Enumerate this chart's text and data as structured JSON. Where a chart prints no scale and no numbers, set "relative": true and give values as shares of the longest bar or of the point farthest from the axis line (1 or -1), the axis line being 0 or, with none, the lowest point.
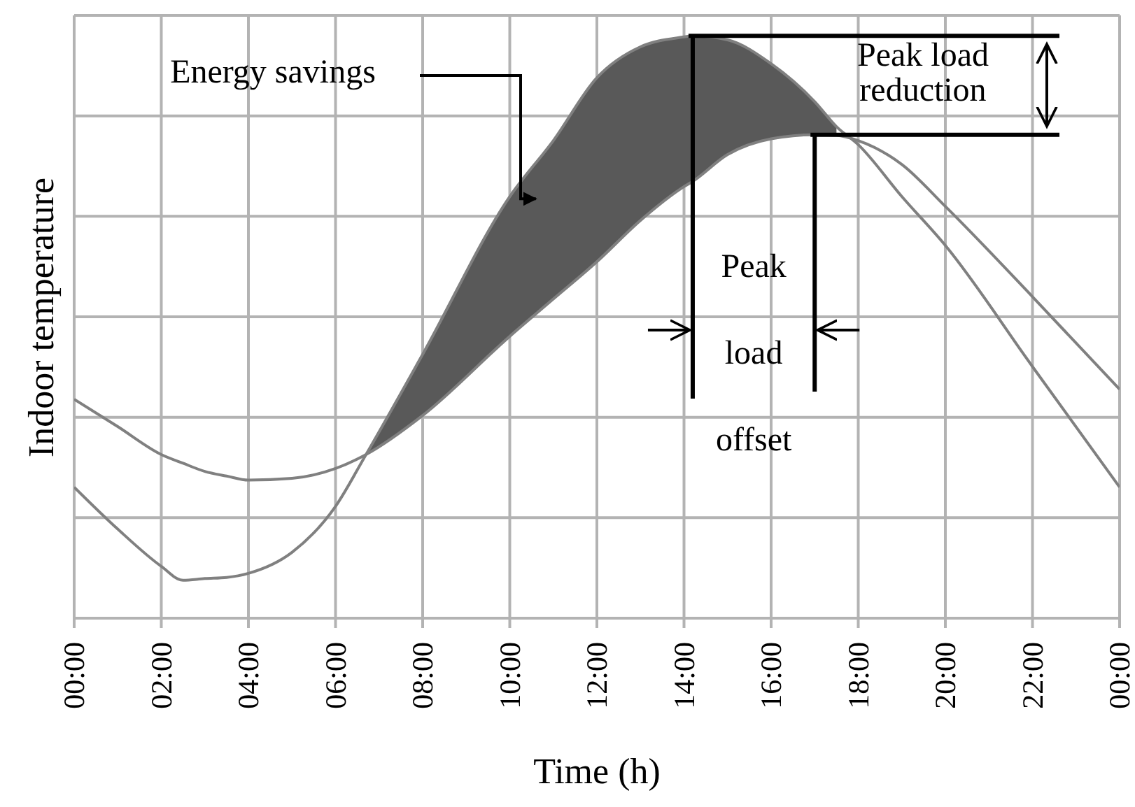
{
  "chart_data": {
    "type": "line",
    "xlabel": "Time (h)",
    "ylabel": "Indoor temperature",
    "relative": true,
    "grid": true,
    "marker": "none",
    "line_style": "solid",
    "x": [
      0,
      1,
      2,
      2.5,
      3,
      3.5,
      4,
      5,
      6,
      6.7,
      8,
      10,
      11,
      12,
      13,
      14,
      14.2,
      15,
      16,
      17,
      17.5,
      18,
      19,
      20,
      22,
      24
    ],
    "xlim": [
      0,
      24
    ],
    "xticks": [
      {
        "value": 0,
        "label": "00:00"
      },
      {
        "value": 2,
        "label": "02:00"
      },
      {
        "value": 4,
        "label": "04:00"
      },
      {
        "value": 6,
        "label": "06:00"
      },
      {
        "value": 8,
        "label": "08:00"
      },
      {
        "value": 10,
        "label": "10:00"
      },
      {
        "value": 12,
        "label": "12:00"
      },
      {
        "value": 14,
        "label": "14:00"
      },
      {
        "value": 16,
        "label": "16:00"
      },
      {
        "value": 18,
        "label": "18:00"
      },
      {
        "value": 20,
        "label": "20:00"
      },
      {
        "value": 22,
        "label": "22:00"
      },
      {
        "value": 24,
        "label": "00:00"
      }
    ],
    "series": [
      {
        "color": "#808080",
        "values": [
          0.225,
          0.153,
          0.089,
          0.065,
          0.068,
          0.07,
          0.077,
          0.113,
          0.192,
          0.281,
          0.453,
          0.724,
          0.82,
          0.928,
          0.981,
          0.998,
          1,
          0.993,
          0.952,
          0.887,
          0.844,
          0.813,
          0.724,
          0.64,
          0.432,
          0.225
        ],
        "lower": [
          null,
          null,
          null,
          null,
          null,
          null,
          null,
          null,
          null,
          0.281,
          0.348,
          0.484,
          0.548,
          0.612,
          0.683,
          0.741,
          0.75,
          0.796,
          0.823,
          0.83,
          0.829,
          null,
          null,
          null,
          null,
          null
        ],
        "upper": [
          null,
          null,
          null,
          null,
          null,
          null,
          null,
          null,
          null,
          0.281,
          0.453,
          0.724,
          0.82,
          0.928,
          0.981,
          0.998,
          1,
          0.993,
          0.952,
          0.887,
          0.844,
          null,
          null,
          null,
          null,
          null
        ]
      },
      {
        "color": "#808080",
        "values": [
          0.376,
          0.329,
          0.281,
          0.266,
          0.252,
          0.244,
          0.237,
          0.24,
          0.257,
          0.281,
          0.348,
          0.484,
          0.548,
          0.612,
          0.683,
          0.741,
          0.75,
          0.796,
          0.823,
          0.83,
          0.829,
          0.82,
          0.779,
          0.707,
          0.552,
          0.393
        ]
      }
    ],
    "annotations": [
      "Energy savings",
      "Peak load reduction",
      "Peak load offset"
    ]
  }
}
